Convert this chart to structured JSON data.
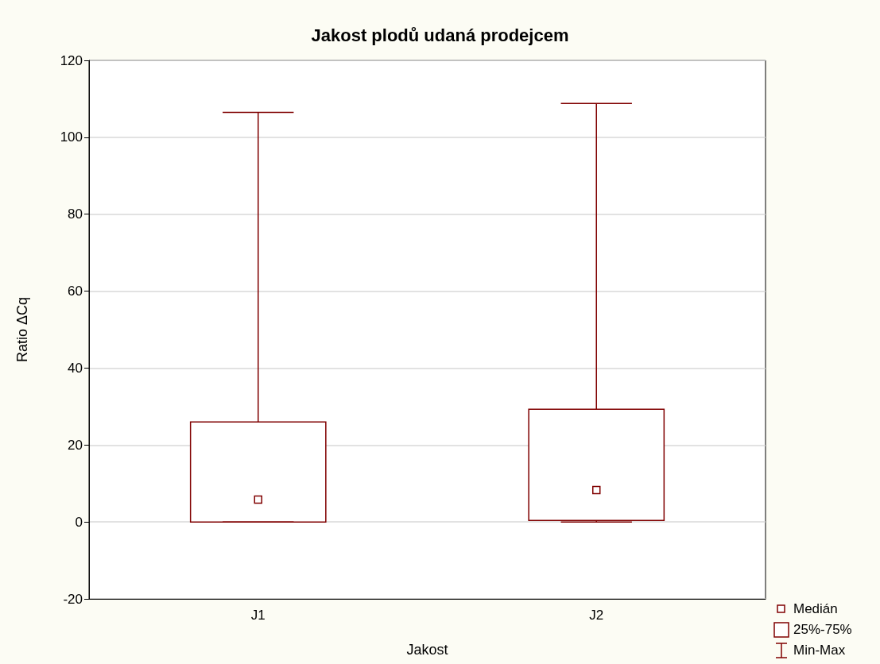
{
  "chart_data": {
    "type": "box",
    "title": "Jakost plodů udaná prodejcem",
    "xlabel": "Jakost",
    "ylabel": "Ratio ΔCq",
    "categories": [
      "J1",
      "J2"
    ],
    "boxes": [
      {
        "low": 0,
        "q1": 0,
        "median": 5.8,
        "q3": 26.0,
        "high": 106.5
      },
      {
        "low": 0,
        "q1": 0.4,
        "median": 8.3,
        "q3": 29.3,
        "high": 108.8
      }
    ],
    "color": "#800000",
    "ylim": [
      -20,
      120
    ],
    "yticks": [
      -20,
      0,
      20,
      40,
      60,
      80,
      100,
      120
    ],
    "grid": "y",
    "annotations": [
      "Medián",
      "25%-75%",
      "Min-Max"
    ]
  }
}
